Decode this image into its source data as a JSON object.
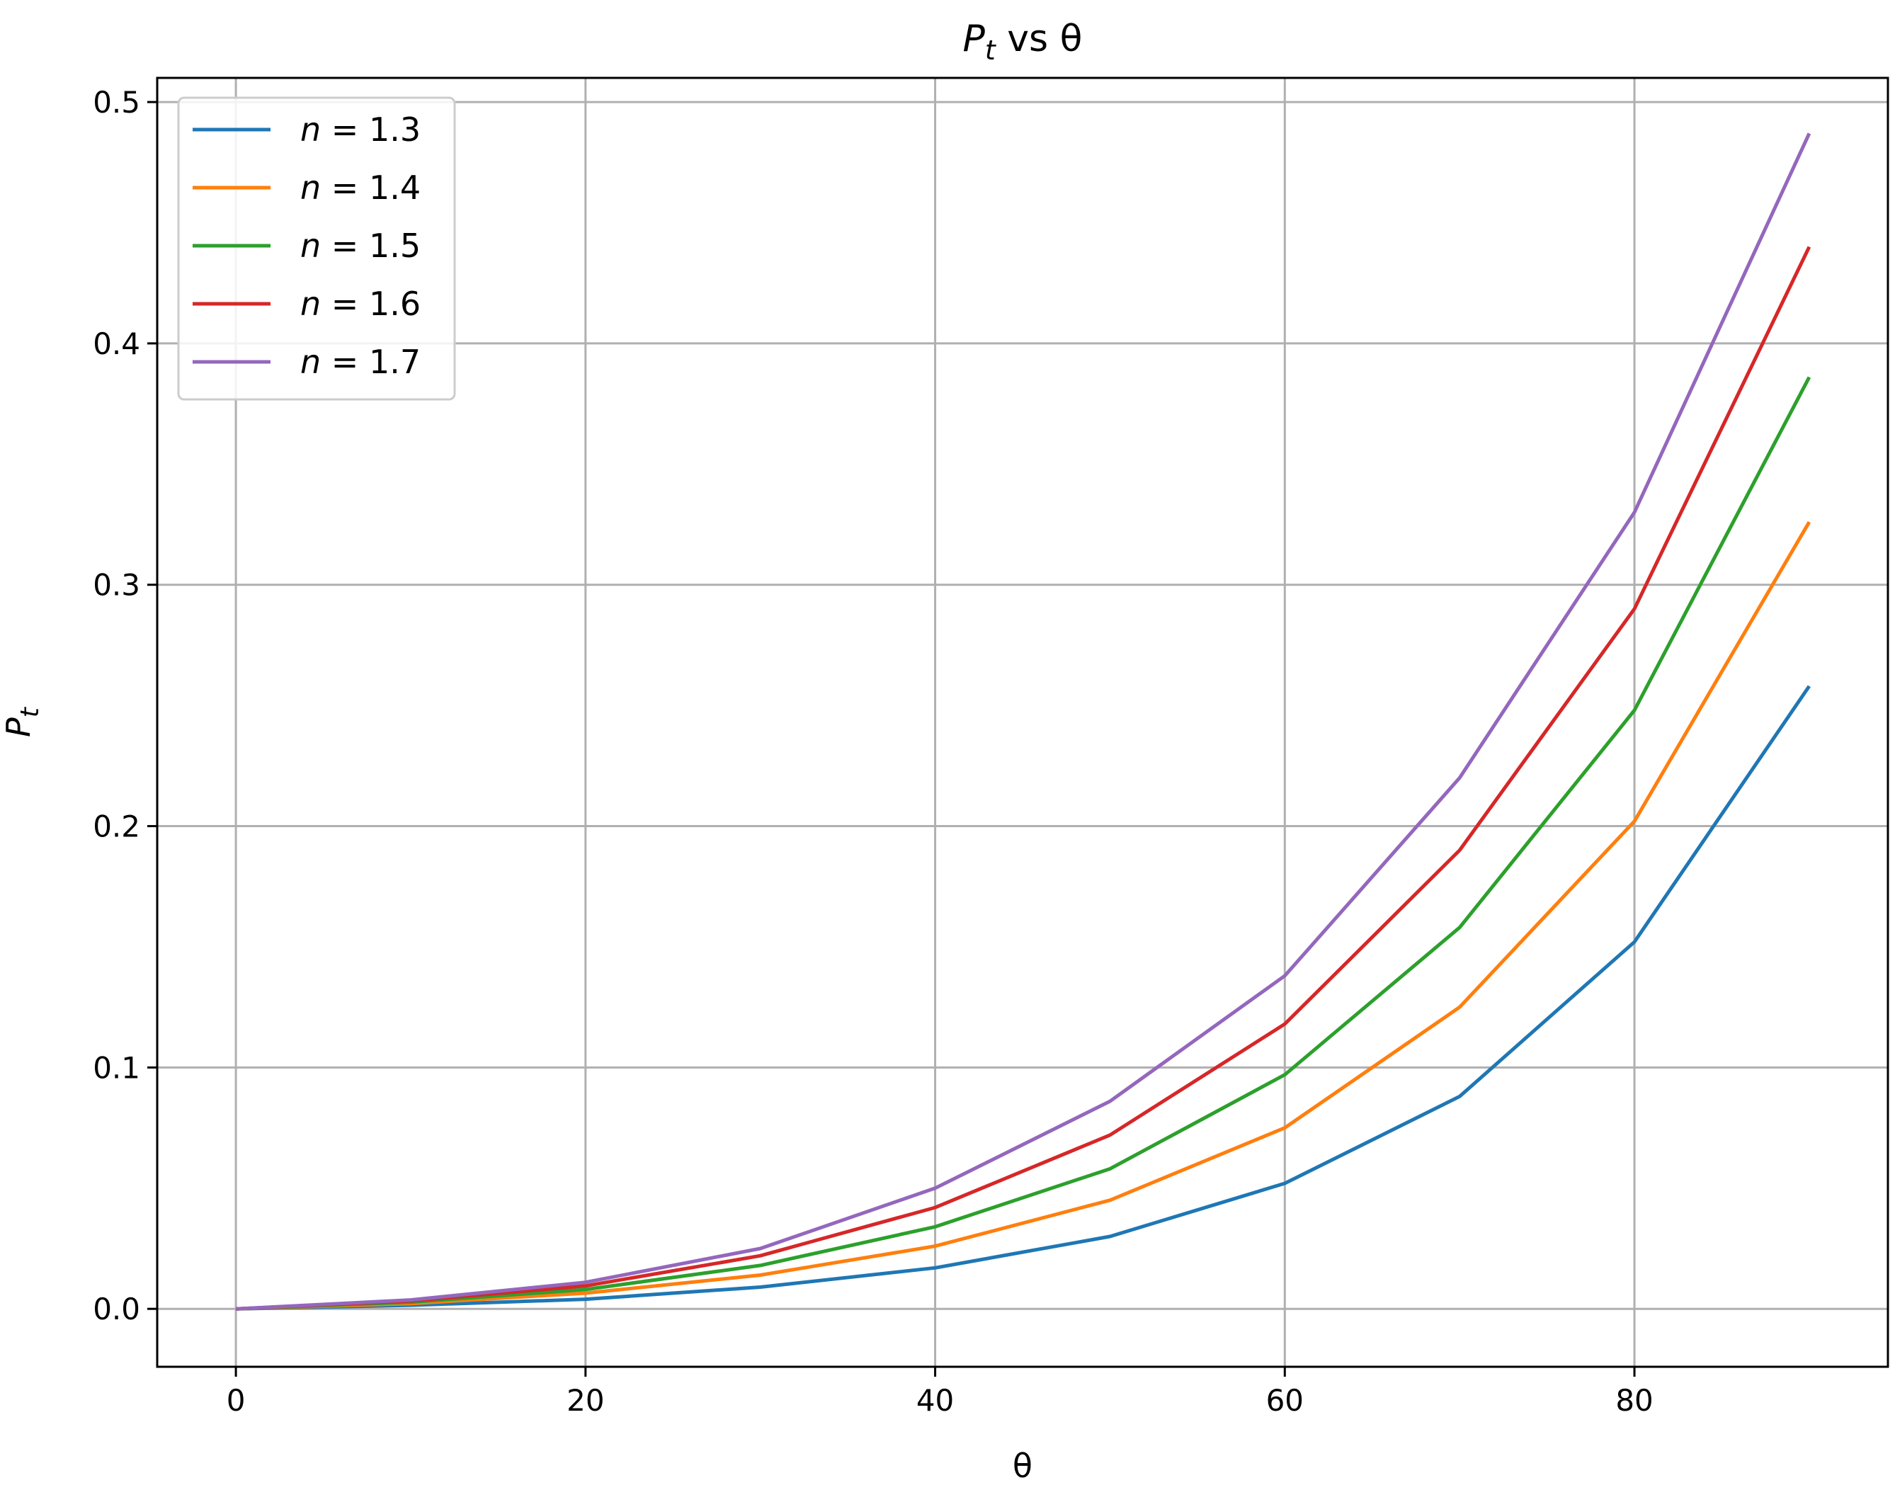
{
  "chart_data": {
    "type": "line",
    "title": {
      "main": "P",
      "sub": "t",
      "rest": " vs θ"
    },
    "xlabel": "θ",
    "ylabel": {
      "main": "P",
      "sub": "t"
    },
    "xlim": [
      -4.5,
      94.5
    ],
    "ylim": [
      -0.024,
      0.51
    ],
    "xticks": [
      0,
      20,
      40,
      60,
      80
    ],
    "yticks": [
      0.0,
      0.1,
      0.2,
      0.3,
      0.4,
      0.5
    ],
    "xtick_labels": [
      "0",
      "20",
      "40",
      "60",
      "80"
    ],
    "ytick_labels": [
      "0.0",
      "0.1",
      "0.2",
      "0.3",
      "0.4",
      "0.5"
    ],
    "grid": true,
    "legend_position": "top-left",
    "x": [
      0,
      10,
      20,
      30,
      40,
      50,
      60,
      70,
      80,
      90
    ],
    "series": [
      {
        "name": "n = 1.3",
        "var": "n",
        "val": "1.3",
        "color": "#1f77b4",
        "values": [
          0.0,
          0.0015,
          0.004,
          0.009,
          0.017,
          0.03,
          0.052,
          0.088,
          0.152,
          0.258
        ]
      },
      {
        "name": "n = 1.4",
        "var": "n",
        "val": "1.4",
        "color": "#ff7f0e",
        "values": [
          0.0,
          0.0022,
          0.0065,
          0.014,
          0.026,
          0.045,
          0.075,
          0.125,
          0.202,
          0.326
        ]
      },
      {
        "name": "n = 1.5",
        "var": "n",
        "val": "1.5",
        "color": "#2ca02c",
        "values": [
          0.0,
          0.0028,
          0.008,
          0.018,
          0.034,
          0.058,
          0.097,
          0.158,
          0.248,
          0.386
        ]
      },
      {
        "name": "n = 1.6",
        "var": "n",
        "val": "1.6",
        "color": "#d62728",
        "values": [
          0.0,
          0.0033,
          0.0095,
          0.022,
          0.042,
          0.072,
          0.118,
          0.19,
          0.29,
          0.44
        ]
      },
      {
        "name": "n = 1.7",
        "var": "n",
        "val": "1.7",
        "color": "#9467bd",
        "values": [
          0.0,
          0.0037,
          0.011,
          0.025,
          0.05,
          0.086,
          0.138,
          0.22,
          0.33,
          0.487
        ]
      }
    ]
  }
}
